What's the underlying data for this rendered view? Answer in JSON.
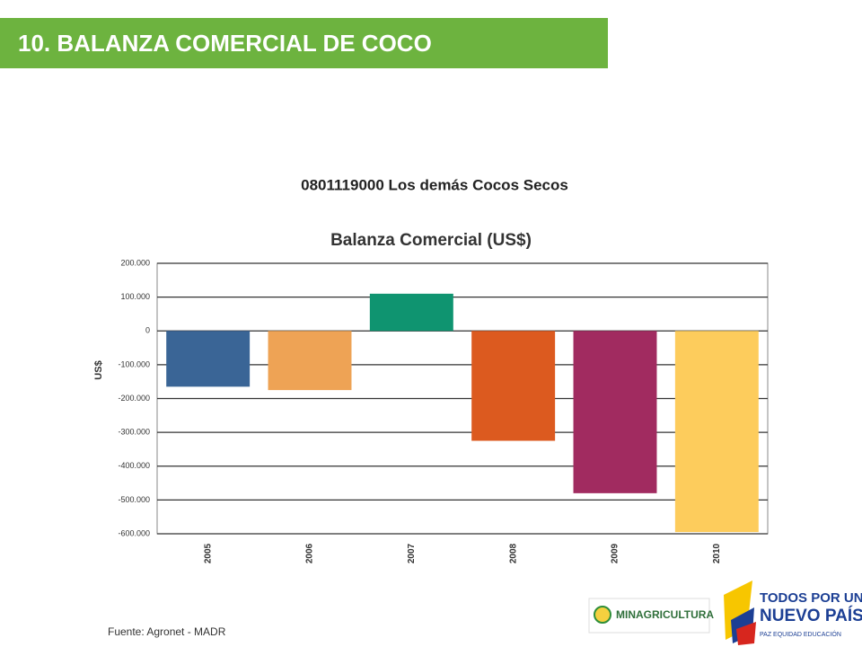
{
  "header": {
    "title": "10. BALANZA COMERCIAL DE COCO"
  },
  "chart_data": {
    "type": "bar",
    "subtitle": "0801119000 Los demás Cocos Secos",
    "title": "Balanza Comercial (US$)",
    "y_label": "US$",
    "categories": [
      "2005",
      "2006",
      "2007",
      "2008",
      "2009",
      "2010"
    ],
    "values": [
      -165000,
      -175000,
      110000,
      -325000,
      -480000,
      -595000
    ],
    "colors": [
      "#3a6596",
      "#eea355",
      "#0f9470",
      "#dc5a1f",
      "#a12b60",
      "#fdcc5c"
    ],
    "ylim": [
      -600000,
      200000
    ],
    "yticks": [
      {
        "value": 200000,
        "label": "200.000"
      },
      {
        "value": 100000,
        "label": "100.000"
      },
      0,
      {
        "value": -100000,
        "label": "-100.000"
      },
      {
        "value": -200000,
        "label": "-200.000"
      },
      {
        "value": -300000,
        "label": "-300.000"
      },
      {
        "value": -400000,
        "label": "-400.000"
      },
      {
        "value": -500000,
        "label": "-500.000"
      },
      {
        "value": -600000,
        "label": "-600.000"
      }
    ],
    "grid": true
  },
  "source": "Fuente: Agronet - MADR",
  "logos": {
    "ministry": "MINAGRICULTURA",
    "line1": "TODOS POR UN",
    "line2": "NUEVO PAÍS",
    "line3": "PAZ  EQUIDAD  EDUCACIÓN"
  }
}
